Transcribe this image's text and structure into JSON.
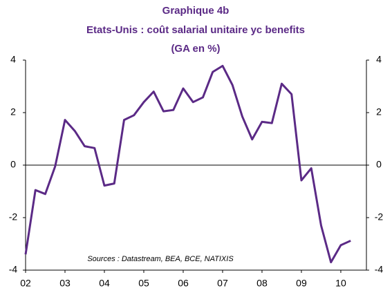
{
  "chart_data": {
    "type": "line",
    "title": "Graphique 4b",
    "subtitle": "Etats-Unis : coût salarial unitaire yc benefits",
    "subtitle2": "(GA en %)",
    "annotation": "Sources : Datastream, BEA, BCE, NATIXIS",
    "x": [
      2002,
      2002.25,
      2002.5,
      2002.75,
      2003,
      2003.25,
      2003.5,
      2003.75,
      2004,
      2004.25,
      2004.5,
      2004.75,
      2005,
      2005.25,
      2005.5,
      2005.75,
      2006,
      2006.25,
      2006.5,
      2006.75,
      2007,
      2007.25,
      2007.5,
      2007.75,
      2008,
      2008.25,
      2008.5,
      2008.75,
      2009,
      2009.25,
      2009.5,
      2009.75,
      2010,
      2010.25
    ],
    "series": [
      {
        "name": "Etats-Unis",
        "color": "#5b2a86",
        "values": [
          -3.4,
          -0.95,
          -1.1,
          -0.05,
          1.72,
          1.3,
          0.72,
          0.65,
          -0.78,
          -0.7,
          1.72,
          1.9,
          2.4,
          2.8,
          2.05,
          2.1,
          2.92,
          2.4,
          2.58,
          3.55,
          3.78,
          3.05,
          1.85,
          0.98,
          1.65,
          1.6,
          3.1,
          2.7,
          -0.58,
          -0.12,
          -2.3,
          -3.7,
          -3.05,
          -2.88
        ]
      }
    ],
    "xlim": [
      2002,
      2010.65
    ],
    "xticks": [
      {
        "value": 2002,
        "label": "02"
      },
      {
        "value": 2003,
        "label": "03"
      },
      {
        "value": 2004,
        "label": "04"
      },
      {
        "value": 2005,
        "label": "05"
      },
      {
        "value": 2006,
        "label": "06"
      },
      {
        "value": 2007,
        "label": "07"
      },
      {
        "value": 2008,
        "label": "08"
      },
      {
        "value": 2009,
        "label": "09"
      },
      {
        "value": 2010,
        "label": "10"
      }
    ],
    "ylim": [
      -4,
      4
    ],
    "yticks": [
      4,
      2,
      0,
      -2,
      -4
    ],
    "y2lim": [
      -4,
      4
    ],
    "y2ticks": [
      4,
      2,
      0,
      -2,
      -4
    ],
    "zero_line": true
  }
}
